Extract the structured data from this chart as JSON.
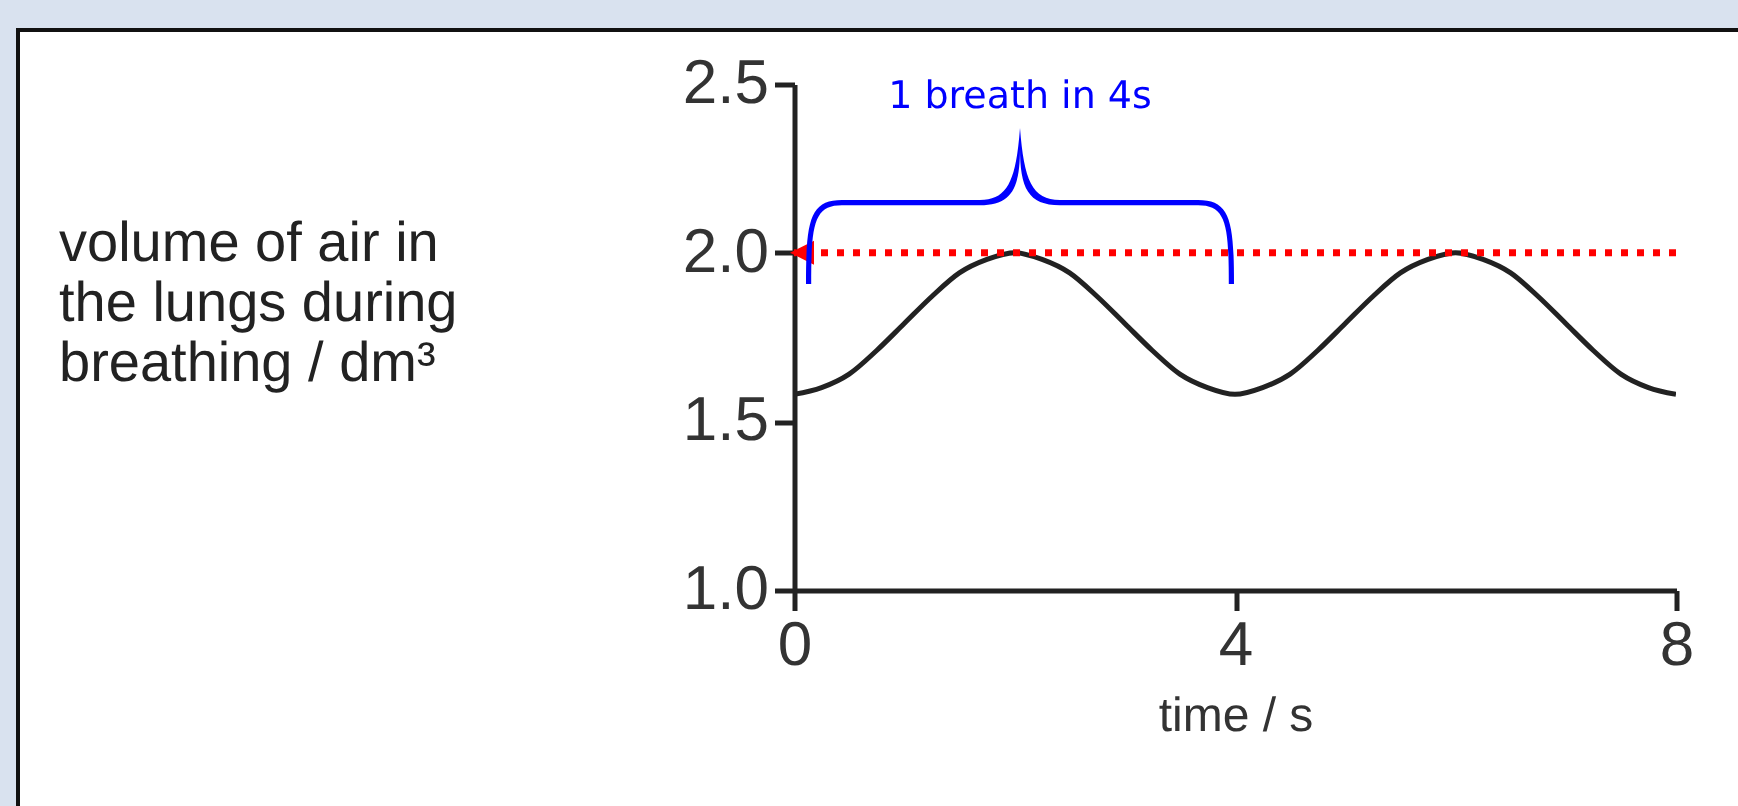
{
  "chart_data": {
    "type": "line",
    "xlabel": "time / s",
    "ylabel": "volume of air in the lungs during breathing / dm³",
    "x": [
      0,
      0.25,
      0.5,
      0.75,
      1,
      1.25,
      1.5,
      1.75,
      2,
      2.25,
      2.5,
      2.75,
      3,
      3.25,
      3.5,
      3.75,
      4,
      4.25,
      4.5,
      4.75,
      5,
      5.25,
      5.5,
      5.75,
      6,
      6.25,
      6.5,
      6.75,
      7,
      7.25,
      7.5,
      7.75,
      8
    ],
    "series": [
      {
        "color": "#222222",
        "values": [
          1.58,
          1.6,
          1.64,
          1.71,
          1.79,
          1.87,
          1.94,
          1.98,
          2.0,
          1.98,
          1.94,
          1.87,
          1.79,
          1.71,
          1.64,
          1.6,
          1.58,
          1.6,
          1.64,
          1.71,
          1.79,
          1.87,
          1.94,
          1.98,
          2.0,
          1.98,
          1.94,
          1.87,
          1.79,
          1.71,
          1.64,
          1.6,
          1.58
        ]
      }
    ],
    "xlim": [
      0,
      8
    ],
    "xticks": [
      0,
      4,
      8
    ],
    "ylim": [
      1.0,
      2.5
    ],
    "yticks": [
      {
        "value": 1.0,
        "label": "1.0"
      },
      {
        "value": 1.5,
        "label": "1.5"
      },
      {
        "value": 2.0,
        "label": "2.0"
      },
      {
        "value": 2.5,
        "label": "2.5"
      }
    ],
    "ref_lines": [
      {
        "axis": "y",
        "value": 2.0,
        "color": "#ff0000",
        "line_style": "dotted"
      }
    ],
    "annotations": [
      "1 breath in 4s"
    ],
    "grid": false,
    "marker": "none",
    "line_style": "solid"
  }
}
